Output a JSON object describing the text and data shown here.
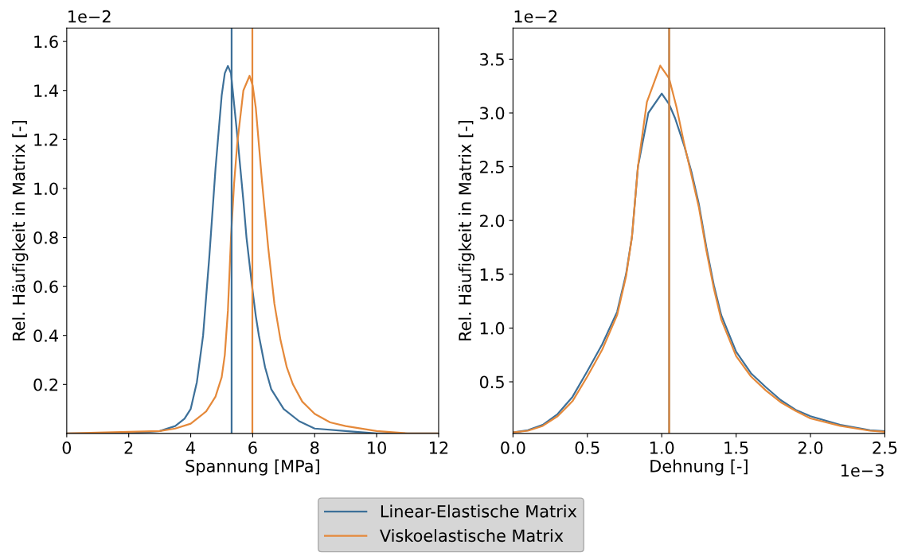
{
  "chart_data": [
    {
      "type": "line",
      "xlabel": "Spannung [MPa]",
      "ylabel": "Rel. Häufigkeit in Matrix [-]",
      "annotations": [
        "1e−2"
      ],
      "xlim": [
        0,
        12
      ],
      "xticks": [
        0,
        2,
        4,
        6,
        8,
        10,
        12
      ],
      "ylim": [
        0,
        1.655
      ],
      "yticks": [
        0.2,
        0.4,
        0.6,
        0.8,
        {
          "value": 1.0,
          "label": "1.0"
        },
        1.2,
        1.4,
        1.6
      ],
      "grid": false,
      "legend": "bottom",
      "series": [
        {
          "name": "Linear-Elastische Matrix",
          "color": "#3d7099",
          "x": [
            0,
            2,
            3,
            3.5,
            3.8,
            4.0,
            4.2,
            4.4,
            4.6,
            4.8,
            5.0,
            5.1,
            5.2,
            5.3,
            5.5,
            5.7,
            5.8,
            5.9,
            6.0,
            6.1,
            6.2,
            6.4,
            6.6,
            7.0,
            7.5,
            8,
            9,
            10,
            12
          ],
          "values": [
            0.0,
            0.0,
            0.01,
            0.03,
            0.06,
            0.1,
            0.21,
            0.4,
            0.72,
            1.08,
            1.38,
            1.47,
            1.5,
            1.47,
            1.22,
            0.95,
            0.8,
            0.69,
            0.58,
            0.48,
            0.4,
            0.27,
            0.18,
            0.1,
            0.05,
            0.02,
            0.01,
            0.0,
            0.0
          ]
        },
        {
          "name": "Viskoelastische Matrix",
          "color": "#e5893a",
          "x": [
            0,
            3,
            3.5,
            4,
            4.5,
            4.8,
            5.0,
            5.1,
            5.2,
            5.3,
            5.4,
            5.5,
            5.7,
            5.9,
            6.0,
            6.1,
            6.3,
            6.5,
            6.7,
            6.9,
            7.1,
            7.3,
            7.6,
            8,
            8.5,
            9,
            10,
            11,
            12
          ],
          "values": [
            0.0,
            0.01,
            0.02,
            0.04,
            0.09,
            0.15,
            0.23,
            0.32,
            0.5,
            0.8,
            1.02,
            1.18,
            1.4,
            1.46,
            1.42,
            1.33,
            1.03,
            0.76,
            0.53,
            0.38,
            0.27,
            0.2,
            0.13,
            0.08,
            0.045,
            0.03,
            0.01,
            0.0,
            0.0
          ]
        }
      ],
      "ref_lines": [
        {
          "axis": "x",
          "value": 5.32,
          "color": "#3d7099"
        },
        {
          "axis": "x",
          "value": 5.99,
          "color": "#e5893a"
        }
      ]
    },
    {
      "type": "line",
      "xlabel": "Dehnung [-]",
      "ylabel": "Rel. Häufigkeit in Matrix [-]",
      "annotations": [
        "1e−2",
        "1e−3"
      ],
      "xlim": [
        0,
        2.5
      ],
      "xticks": [
        {
          "value": 0,
          "label": "0.0"
        },
        0.5,
        {
          "value": 1,
          "label": "1.0"
        },
        1.5,
        {
          "value": 2,
          "label": "2.0"
        },
        2.5
      ],
      "ylim": [
        0.02,
        3.79
      ],
      "yticks": [
        0.5,
        {
          "value": 1,
          "label": "1.0"
        },
        1.5,
        {
          "value": 2,
          "label": "2.0"
        },
        2.5,
        {
          "value": 3,
          "label": "3.0"
        },
        3.5
      ],
      "grid": false,
      "legend": "bottom",
      "series": [
        {
          "name": "Linear-Elastische Matrix",
          "color": "#3d7099",
          "x": [
            0,
            0.1,
            0.2,
            0.3,
            0.4,
            0.5,
            0.6,
            0.7,
            0.76,
            0.8,
            0.84,
            0.91,
            1.0,
            1.05,
            1.09,
            1.15,
            1.2,
            1.25,
            1.3,
            1.35,
            1.4,
            1.5,
            1.6,
            1.7,
            1.8,
            1.9,
            2.0,
            2.2,
            2.4,
            2.5
          ],
          "values": [
            0.03,
            0.05,
            0.1,
            0.2,
            0.36,
            0.6,
            0.85,
            1.15,
            1.5,
            1.85,
            2.5,
            3.0,
            3.18,
            3.08,
            2.95,
            2.7,
            2.45,
            2.15,
            1.75,
            1.4,
            1.12,
            0.78,
            0.58,
            0.45,
            0.33,
            0.24,
            0.18,
            0.1,
            0.05,
            0.04
          ]
        },
        {
          "name": "Viskoelastische Matrix",
          "color": "#e5893a",
          "x": [
            0,
            0.1,
            0.2,
            0.3,
            0.4,
            0.5,
            0.6,
            0.7,
            0.76,
            0.8,
            0.84,
            0.9,
            0.99,
            1.05,
            1.1,
            1.15,
            1.2,
            1.25,
            1.3,
            1.35,
            1.4,
            1.5,
            1.6,
            1.7,
            1.8,
            1.9,
            2.0,
            2.2,
            2.4,
            2.5
          ],
          "values": [
            0.03,
            0.045,
            0.09,
            0.18,
            0.32,
            0.55,
            0.8,
            1.12,
            1.48,
            1.85,
            2.5,
            3.1,
            3.44,
            3.32,
            3.05,
            2.72,
            2.42,
            2.12,
            1.72,
            1.37,
            1.08,
            0.74,
            0.55,
            0.42,
            0.31,
            0.23,
            0.16,
            0.09,
            0.045,
            0.035
          ]
        }
      ],
      "ref_lines": [
        {
          "axis": "x",
          "value": 1.05,
          "color": "#3d7099"
        },
        {
          "axis": "x",
          "value": 1.05,
          "color": "#e5893a"
        }
      ]
    }
  ]
}
